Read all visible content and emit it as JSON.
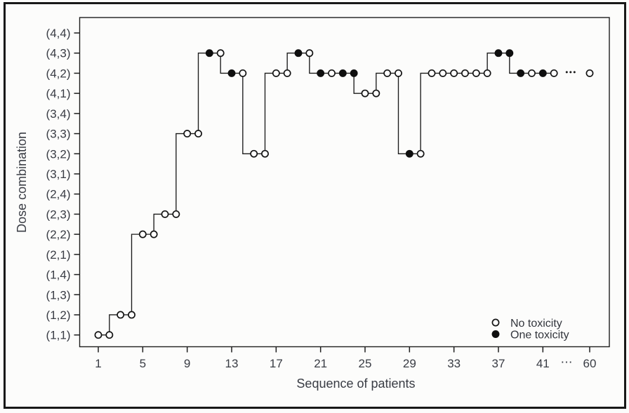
{
  "figure": {
    "background_color": "#fcfcfb",
    "frame_color": "#181818"
  },
  "chart_data": {
    "type": "line",
    "subtype": "step-after-previous-point",
    "title": "",
    "xlabel": "Sequence of patients",
    "ylabel": "Dose combination",
    "grid": "off",
    "x_axis": {
      "tick_values": [
        1,
        5,
        9,
        13,
        17,
        21,
        25,
        29,
        33,
        37,
        41
      ],
      "break_label": "⋯",
      "final_tick": 60
    },
    "y_axis": {
      "categories_bottom_to_top": [
        "(1,1)",
        "(1,2)",
        "(1,3)",
        "(1,4)",
        "(2,1)",
        "(2,2)",
        "(2,3)",
        "(2,4)",
        "(3,1)",
        "(3,2)",
        "(3,3)",
        "(3,4)",
        "(4,1)",
        "(4,2)",
        "(4,3)",
        "(4,4)"
      ]
    },
    "legend": {
      "position": "bottom-right-inside",
      "items": [
        {
          "label": "No toxicity",
          "marker": "open-circle"
        },
        {
          "label": "One toxicity",
          "marker": "filled-circle"
        }
      ]
    },
    "series": [
      {
        "name": "dose-assignment-sequence",
        "points": [
          {
            "patient": 1,
            "dose": "(1,1)",
            "toxicity": "no"
          },
          {
            "patient": 2,
            "dose": "(1,1)",
            "toxicity": "no"
          },
          {
            "patient": 3,
            "dose": "(1,2)",
            "toxicity": "no"
          },
          {
            "patient": 4,
            "dose": "(1,2)",
            "toxicity": "no"
          },
          {
            "patient": 5,
            "dose": "(2,2)",
            "toxicity": "no"
          },
          {
            "patient": 6,
            "dose": "(2,2)",
            "toxicity": "no"
          },
          {
            "patient": 7,
            "dose": "(2,3)",
            "toxicity": "no"
          },
          {
            "patient": 8,
            "dose": "(2,3)",
            "toxicity": "no"
          },
          {
            "patient": 9,
            "dose": "(3,3)",
            "toxicity": "no"
          },
          {
            "patient": 10,
            "dose": "(3,3)",
            "toxicity": "no"
          },
          {
            "patient": 11,
            "dose": "(4,3)",
            "toxicity": "one"
          },
          {
            "patient": 12,
            "dose": "(4,3)",
            "toxicity": "no"
          },
          {
            "patient": 13,
            "dose": "(4,2)",
            "toxicity": "one"
          },
          {
            "patient": 14,
            "dose": "(4,2)",
            "toxicity": "no"
          },
          {
            "patient": 15,
            "dose": "(3,2)",
            "toxicity": "no"
          },
          {
            "patient": 16,
            "dose": "(3,2)",
            "toxicity": "no"
          },
          {
            "patient": 17,
            "dose": "(4,2)",
            "toxicity": "no"
          },
          {
            "patient": 18,
            "dose": "(4,2)",
            "toxicity": "no"
          },
          {
            "patient": 19,
            "dose": "(4,3)",
            "toxicity": "one"
          },
          {
            "patient": 20,
            "dose": "(4,3)",
            "toxicity": "no"
          },
          {
            "patient": 21,
            "dose": "(4,2)",
            "toxicity": "one"
          },
          {
            "patient": 22,
            "dose": "(4,2)",
            "toxicity": "no"
          },
          {
            "patient": 23,
            "dose": "(4,2)",
            "toxicity": "one"
          },
          {
            "patient": 24,
            "dose": "(4,2)",
            "toxicity": "one"
          },
          {
            "patient": 25,
            "dose": "(4,1)",
            "toxicity": "no"
          },
          {
            "patient": 26,
            "dose": "(4,1)",
            "toxicity": "no"
          },
          {
            "patient": 27,
            "dose": "(4,2)",
            "toxicity": "no"
          },
          {
            "patient": 28,
            "dose": "(4,2)",
            "toxicity": "no"
          },
          {
            "patient": 29,
            "dose": "(3,2)",
            "toxicity": "one"
          },
          {
            "patient": 30,
            "dose": "(3,2)",
            "toxicity": "no"
          },
          {
            "patient": 31,
            "dose": "(4,2)",
            "toxicity": "no"
          },
          {
            "patient": 32,
            "dose": "(4,2)",
            "toxicity": "no"
          },
          {
            "patient": 33,
            "dose": "(4,2)",
            "toxicity": "no"
          },
          {
            "patient": 34,
            "dose": "(4,2)",
            "toxicity": "no"
          },
          {
            "patient": 35,
            "dose": "(4,2)",
            "toxicity": "no"
          },
          {
            "patient": 36,
            "dose": "(4,2)",
            "toxicity": "no"
          },
          {
            "patient": 37,
            "dose": "(4,3)",
            "toxicity": "one"
          },
          {
            "patient": 38,
            "dose": "(4,3)",
            "toxicity": "one"
          },
          {
            "patient": 39,
            "dose": "(4,2)",
            "toxicity": "one"
          },
          {
            "patient": 40,
            "dose": "(4,2)",
            "toxicity": "no"
          },
          {
            "patient": 41,
            "dose": "(4,2)",
            "toxicity": "one"
          },
          {
            "patient": 42,
            "dose": "(4,2)",
            "toxicity": "no"
          }
        ]
      }
    ],
    "continuation_ellipsis_at_dose": "(4,2)",
    "detached_points": [
      {
        "patient": 60,
        "dose": "(4,2)",
        "toxicity": "no"
      }
    ],
    "line_color": "#1b1b1b",
    "marker_colors": {
      "open_fill": "#ffffff",
      "filled_fill": "#0f0f0f",
      "stroke": "#141414"
    }
  }
}
